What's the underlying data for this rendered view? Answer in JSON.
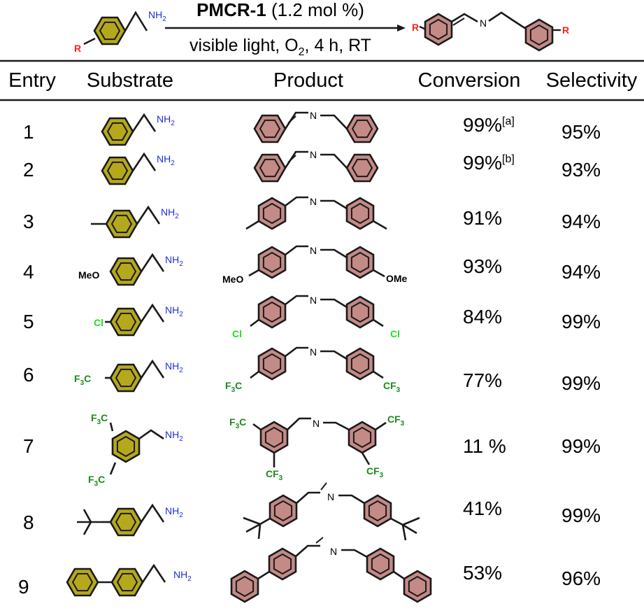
{
  "scheme": {
    "catalyst": "PMCR-1",
    "loading": "(1.2 mol %)",
    "cond_a": "visible light, O",
    "cond_sub": "2",
    "cond_b": ", 4 h, RT",
    "r_label": "R",
    "nh2": "NH",
    "nh2_sub": "2",
    "n_label": "N"
  },
  "headers": {
    "entry": "Entry",
    "substrate": "Substrate",
    "product": "Product",
    "conversion": "Conversion",
    "selectivity": "Selectivity"
  },
  "labels": {
    "nh2": "NH",
    "sub2": "2",
    "n": "N",
    "meo": "MeO",
    "ome": "OMe",
    "cl": "Cl",
    "f3c": "F",
    "c": "C",
    "cf": "CF",
    "sub3": "3"
  },
  "rows": [
    {
      "entry": "1",
      "conversion": "99%",
      "note": "[a]",
      "selectivity": "95%",
      "sub": "H"
    },
    {
      "entry": "2",
      "conversion": "99%",
      "note": "[b]",
      "selectivity": "93%",
      "sub": "H"
    },
    {
      "entry": "3",
      "conversion": "91%",
      "note": "",
      "selectivity": "94%",
      "sub": "Me"
    },
    {
      "entry": "4",
      "conversion": "93%",
      "note": "",
      "selectivity": "94%",
      "sub": "OMe"
    },
    {
      "entry": "5",
      "conversion": "84%",
      "note": "",
      "selectivity": "99%",
      "sub": "Cl"
    },
    {
      "entry": "6",
      "conversion": "77%",
      "note": "",
      "selectivity": "99%",
      "sub": "CF3"
    },
    {
      "entry": "7",
      "conversion": "11 %",
      "note": "",
      "selectivity": "99%",
      "sub": "bisCF3"
    },
    {
      "entry": "8",
      "conversion": "41%",
      "note": "",
      "selectivity": "99%",
      "sub": "tBu"
    },
    {
      "entry": "9",
      "conversion": "53%",
      "note": "",
      "selectivity": "96%",
      "sub": "Ph"
    }
  ],
  "colors": {
    "substrate_ring": "#b5a81c",
    "product_ring": "#c48a86",
    "nh2": "#1f2fd6",
    "r": "#ff2020",
    "cl": "#22dd22",
    "cf3": "#1a8a1a",
    "line": "#1a1a1a"
  }
}
